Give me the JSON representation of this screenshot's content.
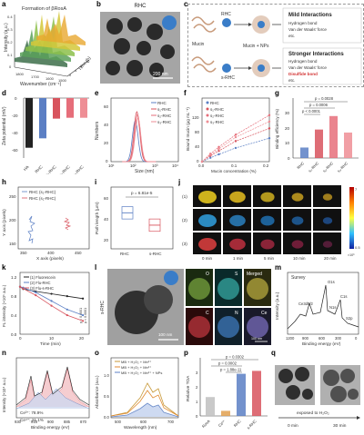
{
  "labels": {
    "a": "a",
    "b": "b",
    "c": "c",
    "d": "d",
    "e": "e",
    "f": "f",
    "g": "g",
    "h": "h",
    "i": "i",
    "j": "j",
    "k": "k",
    "l": "l",
    "m": "m",
    "n": "n",
    "o": "o",
    "p": "p",
    "q": "q"
  },
  "a": {
    "title": "Formation of βRosA",
    "ylabel": "Intensity (a.u.)",
    "xlabel": "Wavenumber (cm⁻¹)",
    "zlabel": "Time (h)",
    "xticks": [
      "1800",
      "1700",
      "1600",
      "1500"
    ],
    "yticks": [
      "0.4",
      "0.3",
      "0.2",
      "0.1",
      "0"
    ],
    "zticks": [
      "0",
      "4",
      "8",
      "12"
    ]
  },
  "b": {
    "title": "RHC",
    "scalebar": "200 nm"
  },
  "c": {
    "mucin": "Mucin",
    "rhc": "RHC",
    "srhc": "s-RHC",
    "result": "Mucin + NPs",
    "sh": "SH",
    "mild_title": "Mild Interactions",
    "mild_items": [
      "Hydrogen bond",
      "Van der Waals' force",
      "etc."
    ],
    "strong_title": "Stronger Interactions",
    "strong_items": [
      "Hydrogen bond",
      "Van der Waals' force",
      "Disulfide bond",
      "etc."
    ]
  },
  "d": {
    "ylabel": "Zeta potential (mV)",
    "yticks": [
      "0",
      "-20",
      "-40",
      "-60"
    ],
    "chart_data": {
      "type": "bar",
      "categories": [
        "HA",
        "RHC",
        "s₁-RHC",
        "s₂-RHC",
        "s₃-RHC"
      ],
      "values": [
        -58,
        -47,
        -24,
        -23,
        -23
      ],
      "ylim": [
        -70,
        0
      ],
      "colors": [
        "#222222",
        "#5b7fc4",
        "#d8545e",
        "#e66e7a",
        "#ee8e95"
      ]
    }
  },
  "e": {
    "ylabel": "Numbers",
    "xlabel": "Size (nm)",
    "yticks": [
      "0",
      "20",
      "40",
      "60"
    ],
    "xticks": [
      "10¹",
      "10²",
      "10³",
      "10⁴"
    ],
    "legend": [
      "RHC",
      "s₁-RHC",
      "s₂-RHC",
      "s₃-RHC"
    ],
    "chart_data": {
      "type": "line",
      "series": [
        {
          "name": "RHC",
          "peak_log": 2.08,
          "height": 45
        },
        {
          "name": "s₁-RHC",
          "peak_log": 2.15,
          "height": 55
        },
        {
          "name": "s₂-RHC",
          "peak_log": 2.18,
          "height": 52
        },
        {
          "name": "s₃-RHC",
          "peak_log": 2.2,
          "height": 48
        }
      ],
      "xlim_log": [
        1,
        4
      ],
      "ylim": [
        0,
        70
      ]
    }
  },
  "f": {
    "ylabel": "Bound mucin (μg mL⁻¹)",
    "xlabel": "Mucin concentration (%)",
    "yticks": [
      "0",
      "40",
      "80",
      "120"
    ],
    "xticks": [
      "0.0",
      "0.1",
      "0.2"
    ],
    "legend": [
      "RHC",
      "s₁-RHC",
      "s₂-RHC",
      "s₃-RHC"
    ],
    "chart_data": {
      "type": "line",
      "x": [
        0,
        0.025,
        0.05,
        0.1,
        0.2
      ],
      "series": [
        {
          "name": "RHC",
          "values": [
            0,
            8,
            15,
            28,
            48
          ]
        },
        {
          "name": "s₁-RHC",
          "values": [
            0,
            12,
            22,
            42,
            68
          ]
        },
        {
          "name": "s₂-RHC",
          "values": [
            0,
            16,
            30,
            55,
            95
          ]
        },
        {
          "name": "s₃-RHC",
          "values": [
            0,
            14,
            26,
            50,
            82
          ]
        }
      ],
      "ylim": [
        0,
        130
      ],
      "xlim": [
        0,
        0.2
      ]
    }
  },
  "g": {
    "ylabel": "Binding efficiency (%)",
    "yticks": [
      "0",
      "10",
      "20",
      "30"
    ],
    "stats": [
      "p = 0.0028",
      "p = 0.0006",
      "p < 0.0001"
    ],
    "chart_data": {
      "type": "bar",
      "categories": [
        "RHC",
        "s₁-RHC",
        "s₂-RHC",
        "s₃-RHC"
      ],
      "values": [
        7,
        19,
        28,
        17
      ],
      "ylim": [
        0,
        40
      ]
    }
  },
  "h": {
    "ylabel": "Y axis (pixels)",
    "xlabel": "X axis (pixels)",
    "legend": [
      "RHC (s₂-RHC)",
      "RHC (s₂-RHC)"
    ],
    "xticks": [
      "350",
      "400",
      "450"
    ],
    "yticks": [
      "150",
      "200",
      "250"
    ]
  },
  "i": {
    "ylabel": "Path length (μm)",
    "stat": "p = 6.81e-5",
    "xticks": [
      "RHC",
      "s-RHC"
    ],
    "yticks": [
      "20",
      "40",
      "60"
    ],
    "chart_data": {
      "type": "scatter",
      "categories": [
        "RHC",
        "s-RHC"
      ],
      "values": [
        45,
        33
      ],
      "ylim": [
        10,
        70
      ]
    }
  },
  "j": {
    "rows": [
      "(1)",
      "(2)",
      "(3)"
    ],
    "times": [
      "0 min",
      "1 min",
      "5 min",
      "10 min",
      "20 min"
    ],
    "scale_top": "7",
    "scale_bottom": "0.5",
    "scale_unit": "×10⁶"
  },
  "k": {
    "ylabel": "FL intensity (×10⁶ a.u.)",
    "xlabel": "Time (min)",
    "legend": [
      "(1) Fluorescein",
      "(2) Flu-RHC",
      "(3) Flu-s-RHC"
    ],
    "yticks": [
      "0.0",
      "0.4",
      "0.8",
      "1.2"
    ],
    "xticks": [
      "0",
      "10",
      "20"
    ],
    "stats": [
      "p < 0.0001",
      "p < 0.0001"
    ],
    "chart_data": {
      "type": "line",
      "x": [
        0,
        1,
        5,
        10,
        15,
        20
      ],
      "series": [
        {
          "name": "(1) Fluorescein",
          "values": [
            1.0,
            0.95,
            0.9,
            0.85,
            0.8,
            0.75
          ]
        },
        {
          "name": "(2) Flu-RHC",
          "values": [
            1.0,
            0.98,
            0.88,
            0.7,
            0.52,
            0.4
          ]
        },
        {
          "name": "(3) Flu-s-RHC",
          "values": [
            1.0,
            0.96,
            0.82,
            0.6,
            0.4,
            0.28
          ]
        }
      ],
      "ylim": [
        0,
        1.3
      ],
      "xlim": [
        0,
        22
      ]
    }
  },
  "l": {
    "side": "s-RHC",
    "scalebar": "100 nm",
    "channels": [
      "O",
      "S",
      "Merged",
      "C",
      "N",
      "Ce"
    ],
    "scale2": "100 nm"
  },
  "m": {
    "ylabel": "Intensity (a.u.)",
    "xlabel": "Binding energy (eV)",
    "title": "Survey",
    "xticks": [
      "1200",
      "900",
      "600",
      "300",
      "0"
    ],
    "peaks": [
      "O1s",
      "C1s",
      "Ce3d5/2",
      "N1s",
      "S2p"
    ]
  },
  "n": {
    "ylabel": "Intensity (×10⁴ a.u.)",
    "xlabel": "Binding energy (eV)",
    "xticks": [
      "930",
      "915",
      "900",
      "885",
      "870"
    ],
    "legend": [
      "Ce³⁺: 78.9%",
      "Ce⁴⁺: 21.1%"
    ]
  },
  "o": {
    "ylabel": "Absorbance (a.u.)",
    "xlabel": "Wavelength (nm)",
    "xticks": [
      "500",
      "600",
      "700"
    ],
    "yticks": [
      "0.0",
      "0.5",
      "1.0"
    ],
    "legend": [
      "MB + H₂O₂ + Mn²⁺",
      "MB + H₂O₂ + Mn²⁺",
      "MB + H₂O₂ + Mn²⁺ + NPs"
    ]
  },
  "p": {
    "ylabel": "Relative TOA",
    "yticks": [
      "0",
      "1",
      "2",
      "3"
    ],
    "stats": [
      "p = 0.0302",
      "p = 0.0002",
      "p = 1.88e-11"
    ],
    "chart_data": {
      "type": "bar",
      "categories": [
        "RosA",
        "Ce³⁺",
        "RHC",
        "s-RHC"
      ],
      "values": [
        1.3,
        0.35,
        2.9,
        3.1
      ],
      "ylim": [
        0,
        4
      ]
    }
  },
  "q": {
    "caption": "exposed to H₂O₂",
    "t0": "0 min",
    "t1": "30 min"
  }
}
